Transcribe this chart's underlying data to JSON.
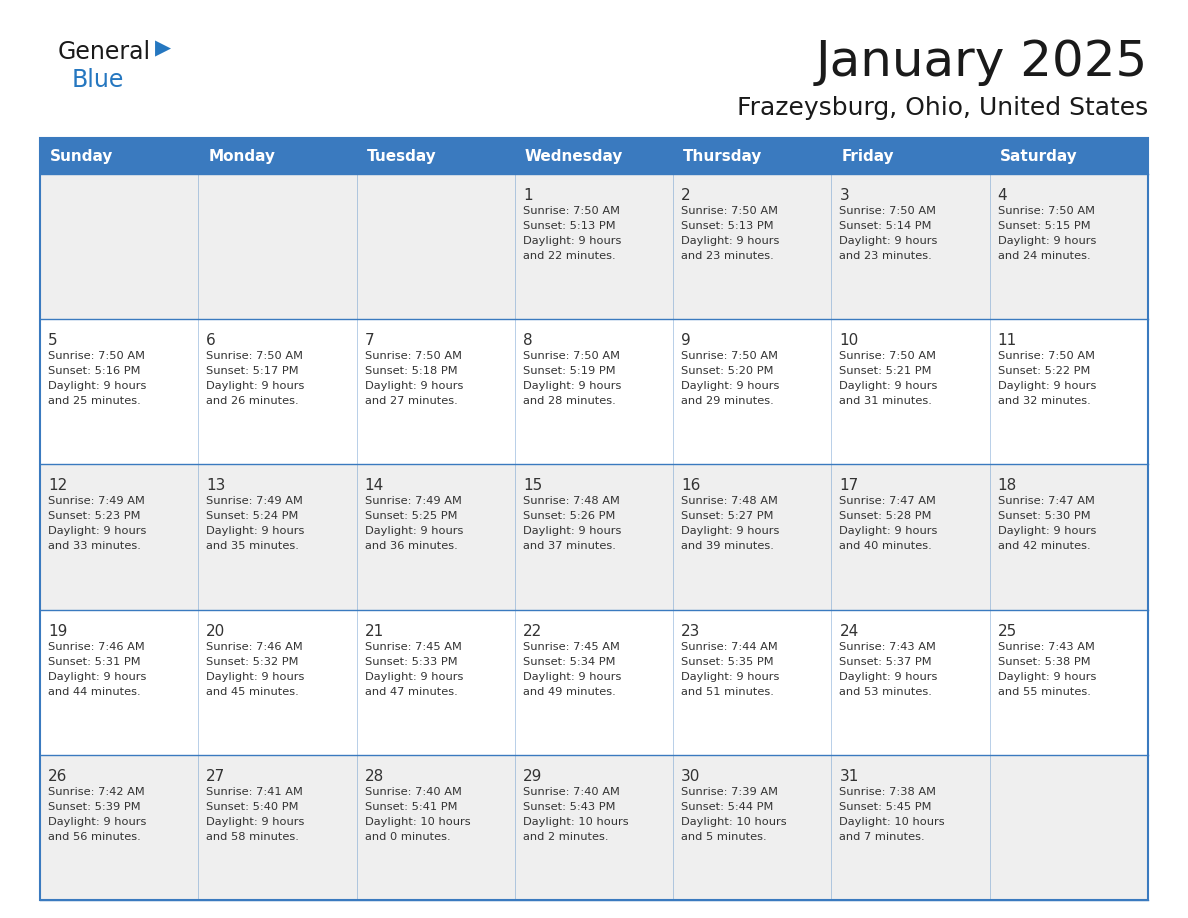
{
  "title": "January 2025",
  "subtitle": "Frazeysburg, Ohio, United States",
  "header_bg": "#3a7abf",
  "header_text_color": "#ffffff",
  "day_names": [
    "Sunday",
    "Monday",
    "Tuesday",
    "Wednesday",
    "Thursday",
    "Friday",
    "Saturday"
  ],
  "cell_bg_odd": "#efefef",
  "cell_bg_even": "#ffffff",
  "text_color": "#333333",
  "line_color": "#3a7abf",
  "title_color": "#1a1a1a",
  "logo_general_color": "#1a1a1a",
  "logo_blue_color": "#2577c0",
  "calendar": [
    [
      null,
      null,
      null,
      {
        "day": 1,
        "sunrise": "7:50 AM",
        "sunset": "5:13 PM",
        "daylight": "9 hours",
        "daylight2": "and 22 minutes."
      },
      {
        "day": 2,
        "sunrise": "7:50 AM",
        "sunset": "5:13 PM",
        "daylight": "9 hours",
        "daylight2": "and 23 minutes."
      },
      {
        "day": 3,
        "sunrise": "7:50 AM",
        "sunset": "5:14 PM",
        "daylight": "9 hours",
        "daylight2": "and 23 minutes."
      },
      {
        "day": 4,
        "sunrise": "7:50 AM",
        "sunset": "5:15 PM",
        "daylight": "9 hours",
        "daylight2": "and 24 minutes."
      }
    ],
    [
      {
        "day": 5,
        "sunrise": "7:50 AM",
        "sunset": "5:16 PM",
        "daylight": "9 hours",
        "daylight2": "and 25 minutes."
      },
      {
        "day": 6,
        "sunrise": "7:50 AM",
        "sunset": "5:17 PM",
        "daylight": "9 hours",
        "daylight2": "and 26 minutes."
      },
      {
        "day": 7,
        "sunrise": "7:50 AM",
        "sunset": "5:18 PM",
        "daylight": "9 hours",
        "daylight2": "and 27 minutes."
      },
      {
        "day": 8,
        "sunrise": "7:50 AM",
        "sunset": "5:19 PM",
        "daylight": "9 hours",
        "daylight2": "and 28 minutes."
      },
      {
        "day": 9,
        "sunrise": "7:50 AM",
        "sunset": "5:20 PM",
        "daylight": "9 hours",
        "daylight2": "and 29 minutes."
      },
      {
        "day": 10,
        "sunrise": "7:50 AM",
        "sunset": "5:21 PM",
        "daylight": "9 hours",
        "daylight2": "and 31 minutes."
      },
      {
        "day": 11,
        "sunrise": "7:50 AM",
        "sunset": "5:22 PM",
        "daylight": "9 hours",
        "daylight2": "and 32 minutes."
      }
    ],
    [
      {
        "day": 12,
        "sunrise": "7:49 AM",
        "sunset": "5:23 PM",
        "daylight": "9 hours",
        "daylight2": "and 33 minutes."
      },
      {
        "day": 13,
        "sunrise": "7:49 AM",
        "sunset": "5:24 PM",
        "daylight": "9 hours",
        "daylight2": "and 35 minutes."
      },
      {
        "day": 14,
        "sunrise": "7:49 AM",
        "sunset": "5:25 PM",
        "daylight": "9 hours",
        "daylight2": "and 36 minutes."
      },
      {
        "day": 15,
        "sunrise": "7:48 AM",
        "sunset": "5:26 PM",
        "daylight": "9 hours",
        "daylight2": "and 37 minutes."
      },
      {
        "day": 16,
        "sunrise": "7:48 AM",
        "sunset": "5:27 PM",
        "daylight": "9 hours",
        "daylight2": "and 39 minutes."
      },
      {
        "day": 17,
        "sunrise": "7:47 AM",
        "sunset": "5:28 PM",
        "daylight": "9 hours",
        "daylight2": "and 40 minutes."
      },
      {
        "day": 18,
        "sunrise": "7:47 AM",
        "sunset": "5:30 PM",
        "daylight": "9 hours",
        "daylight2": "and 42 minutes."
      }
    ],
    [
      {
        "day": 19,
        "sunrise": "7:46 AM",
        "sunset": "5:31 PM",
        "daylight": "9 hours",
        "daylight2": "and 44 minutes."
      },
      {
        "day": 20,
        "sunrise": "7:46 AM",
        "sunset": "5:32 PM",
        "daylight": "9 hours",
        "daylight2": "and 45 minutes."
      },
      {
        "day": 21,
        "sunrise": "7:45 AM",
        "sunset": "5:33 PM",
        "daylight": "9 hours",
        "daylight2": "and 47 minutes."
      },
      {
        "day": 22,
        "sunrise": "7:45 AM",
        "sunset": "5:34 PM",
        "daylight": "9 hours",
        "daylight2": "and 49 minutes."
      },
      {
        "day": 23,
        "sunrise": "7:44 AM",
        "sunset": "5:35 PM",
        "daylight": "9 hours",
        "daylight2": "and 51 minutes."
      },
      {
        "day": 24,
        "sunrise": "7:43 AM",
        "sunset": "5:37 PM",
        "daylight": "9 hours",
        "daylight2": "and 53 minutes."
      },
      {
        "day": 25,
        "sunrise": "7:43 AM",
        "sunset": "5:38 PM",
        "daylight": "9 hours",
        "daylight2": "and 55 minutes."
      }
    ],
    [
      {
        "day": 26,
        "sunrise": "7:42 AM",
        "sunset": "5:39 PM",
        "daylight": "9 hours",
        "daylight2": "and 56 minutes."
      },
      {
        "day": 27,
        "sunrise": "7:41 AM",
        "sunset": "5:40 PM",
        "daylight": "9 hours",
        "daylight2": "and 58 minutes."
      },
      {
        "day": 28,
        "sunrise": "7:40 AM",
        "sunset": "5:41 PM",
        "daylight": "10 hours",
        "daylight2": "and 0 minutes."
      },
      {
        "day": 29,
        "sunrise": "7:40 AM",
        "sunset": "5:43 PM",
        "daylight": "10 hours",
        "daylight2": "and 2 minutes."
      },
      {
        "day": 30,
        "sunrise": "7:39 AM",
        "sunset": "5:44 PM",
        "daylight": "10 hours",
        "daylight2": "and 5 minutes."
      },
      {
        "day": 31,
        "sunrise": "7:38 AM",
        "sunset": "5:45 PM",
        "daylight": "10 hours",
        "daylight2": "and 7 minutes."
      },
      null
    ]
  ]
}
